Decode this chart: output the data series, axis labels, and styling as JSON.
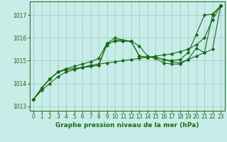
{
  "background_color": "#c8ece8",
  "grid_color": "#a0d0c8",
  "line_color": "#1a6b1a",
  "marker": "D",
  "marker_size": 2.5,
  "line_width": 0.8,
  "xlabel": "Graphe pression niveau de la mer (hPa)",
  "xlabel_fontsize": 6.5,
  "tick_fontsize": 5.5,
  "xlim": [
    -0.5,
    23.5
  ],
  "ylim": [
    1012.8,
    1017.6
  ],
  "yticks": [
    1013,
    1014,
    1015,
    1016,
    1017
  ],
  "xticks": [
    0,
    1,
    2,
    3,
    4,
    5,
    6,
    7,
    8,
    9,
    10,
    11,
    12,
    13,
    14,
    15,
    16,
    17,
    18,
    19,
    20,
    21,
    22,
    23
  ],
  "lines": [
    {
      "x": [
        0,
        1,
        2,
        3,
        4,
        5,
        6,
        7,
        8,
        9,
        10,
        11,
        12,
        13,
        14,
        15,
        16,
        17,
        18,
        19,
        20,
        21,
        22,
        23
      ],
      "y": [
        1013.3,
        1013.7,
        1014.0,
        1014.3,
        1014.5,
        1014.6,
        1014.7,
        1014.8,
        1014.85,
        1014.9,
        1014.95,
        1015.0,
        1015.05,
        1015.1,
        1015.15,
        1015.2,
        1015.25,
        1015.3,
        1015.4,
        1015.5,
        1015.7,
        1016.0,
        1016.8,
        1017.4
      ]
    },
    {
      "x": [
        0,
        1,
        2,
        3,
        4,
        5,
        6,
        7,
        8,
        9,
        10,
        11,
        12,
        13,
        14,
        15,
        16,
        17,
        18,
        19,
        20,
        21,
        22,
        23
      ],
      "y": [
        1013.3,
        1013.8,
        1014.2,
        1014.5,
        1014.65,
        1014.75,
        1014.85,
        1014.95,
        1015.1,
        1015.75,
        1015.85,
        1015.85,
        1015.85,
        1015.2,
        1015.15,
        1015.15,
        1015.05,
        1014.95,
        1014.9,
        1015.05,
        1015.2,
        1015.35,
        1015.5,
        1017.4
      ]
    },
    {
      "x": [
        0,
        1,
        2,
        3,
        4,
        5,
        6,
        7,
        8,
        9,
        10,
        11,
        12,
        13,
        14,
        15,
        16,
        17,
        18,
        19,
        20,
        21,
        22,
        23
      ],
      "y": [
        1013.3,
        1013.8,
        1014.2,
        1014.5,
        1014.6,
        1014.65,
        1014.7,
        1014.75,
        1014.8,
        1015.75,
        1016.0,
        1015.9,
        1015.85,
        1015.2,
        1015.15,
        1015.15,
        1015.05,
        1015.0,
        1015.05,
        1015.35,
        1016.15,
        1017.0,
        1017.05,
        1017.4
      ]
    },
    {
      "x": [
        0,
        1,
        2,
        3,
        4,
        5,
        6,
        7,
        8,
        9,
        10,
        11,
        12,
        13,
        14,
        15,
        16,
        17,
        18,
        19,
        20,
        21,
        22,
        23
      ],
      "y": [
        1013.3,
        1013.8,
        1014.2,
        1014.5,
        1014.6,
        1014.65,
        1014.7,
        1014.75,
        1014.8,
        1015.68,
        1015.9,
        1015.9,
        1015.85,
        1015.65,
        1015.2,
        1015.1,
        1014.9,
        1014.85,
        1014.85,
        1015.05,
        1015.55,
        1015.35,
        1017.0,
        1017.4
      ]
    }
  ]
}
